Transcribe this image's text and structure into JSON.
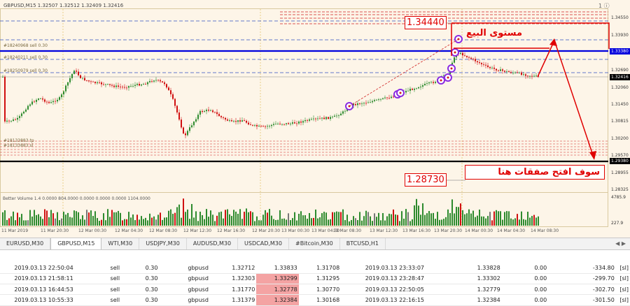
{
  "chart": {
    "header": "GBPUSD,M15  1.32507 1.32512 1.32409 1.32416",
    "icons_label": "1 ⓘ",
    "price_axis": [
      "1.34550",
      "1.33930",
      "1.33380",
      "1.32690",
      "1.32416",
      "1.32060",
      "1.31450",
      "1.30815",
      "1.30200",
      "1.29570",
      "1.29380",
      "1.28955",
      "1.28325",
      "4785.9",
      "227.9"
    ],
    "order_labels": [
      "#18240968 sell 0.30",
      "#18240211 sell 0.30",
      "#18250979 sell 0.30",
      "#18133883 tp",
      "#18133883 sl"
    ],
    "time_axis": [
      "11 Mar 2019",
      "11 Mar 20:30",
      "12 Mar 00:30",
      "12 Mar 04:30",
      "12 Mar 08:30",
      "12 Mar 12:30",
      "12 Mar 16:30",
      "12 Mar 20:30",
      "13 Mar 00:30",
      "13 Mar 04:30",
      "13 Mar 08:30",
      "13 Mar 12:30",
      "13 Mar 16:30",
      "13 Mar 20:30",
      "14 Mar 00:30",
      "14 Mar 04:30",
      "14 Mar 08:30"
    ],
    "sell_level_box": "1.34440",
    "buy_level_box": "1.28730",
    "sell_level_text": "مستوى البيع",
    "buy_text": "سوف افتح صفقات هنا",
    "indicator_label": "Better Volume 1.4  0.0000 804.0000 0.0000 0.0000 0.0000 1104.0000",
    "colors": {
      "blue_line": "#0000dd",
      "black_line": "#000000",
      "annotation_red": "#e00000",
      "bull": "#2e8b2e",
      "bear": "#d01010",
      "background": "#fdf5e8"
    }
  },
  "tabs": [
    "EURUSD,M30",
    "GBPUSD,M15",
    "WTI,M30",
    "USDJPY,M30",
    "AUDUSD,M30",
    "USDCAD,M30",
    "#Bitcoin,M30",
    "BTCUSD,H1"
  ],
  "active_tab": "GBPUSD,M15",
  "tab_arrows": "◀ ▶",
  "orders": [
    {
      "open_time": "2019.03.13 22:50:04",
      "type": "sell",
      "size": "0.30",
      "symbol": "gbpusd",
      "price": "1.32712",
      "sl": "1.33833",
      "tp": "1.31708",
      "close_time": "2019.03.13 23:33:07",
      "close_price": "1.33828",
      "commission": "0.00",
      "profit": "-334.80",
      "comment": "[sl]"
    },
    {
      "open_time": "2019.03.13 21:58:11",
      "type": "sell",
      "size": "0.30",
      "symbol": "gbpusd",
      "price": "1.32303",
      "sl": "1.33299",
      "tp": "1.31295",
      "close_time": "2019.03.13 23:28:47",
      "close_price": "1.33302",
      "commission": "0.00",
      "profit": "-299.70",
      "comment": "[sl]"
    },
    {
      "open_time": "2019.03.13 16:44:53",
      "type": "sell",
      "size": "0.30",
      "symbol": "gbpusd",
      "price": "1.31770",
      "sl": "1.32778",
      "tp": "1.30770",
      "close_time": "2019.03.13 22:50:05",
      "close_price": "1.32779",
      "commission": "0.00",
      "profit": "-302.70",
      "comment": "[sl]"
    },
    {
      "open_time": "2019.03.13 10:55:33",
      "type": "sell",
      "size": "0.30",
      "symbol": "gbpusd",
      "price": "1.31379",
      "sl": "1.32384",
      "tp": "1.30168",
      "close_time": "2019.03.13 22:16:15",
      "close_price": "1.32384",
      "commission": "0.00",
      "profit": "-301.50",
      "comment": "[sl]"
    }
  ]
}
